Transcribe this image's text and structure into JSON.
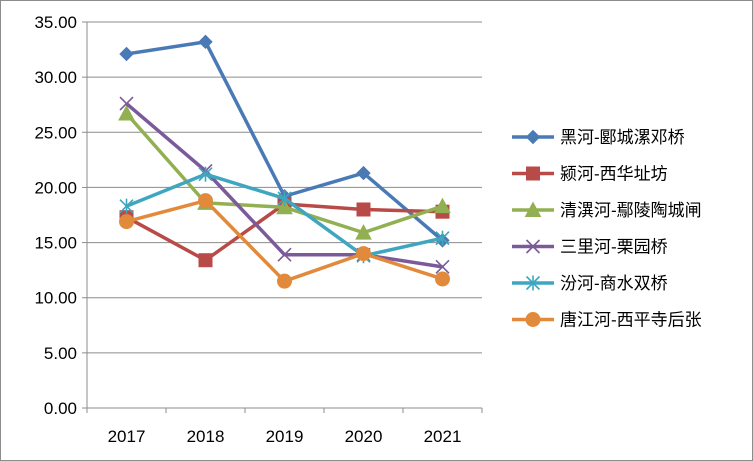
{
  "chart_data": {
    "type": "line",
    "categories": [
      "2017",
      "2018",
      "2019",
      "2020",
      "2021"
    ],
    "ylim": [
      0,
      35
    ],
    "yticks": [
      "0.00",
      "5.00",
      "10.00",
      "15.00",
      "20.00",
      "25.00",
      "30.00",
      "35.00"
    ],
    "grid": true,
    "legend_position": "right",
    "series": [
      {
        "name": "黑河-郾城漯邓桥",
        "values": [
          32.1,
          33.2,
          19.2,
          21.3,
          15.2
        ],
        "color": "#4a7ab5",
        "marker": "diamond"
      },
      {
        "name": "颍河-西华址坊",
        "values": [
          17.3,
          13.4,
          18.5,
          18.0,
          17.8
        ],
        "color": "#b84a48",
        "marker": "square"
      },
      {
        "name": "清潩河-鄢陵陶城闸",
        "values": [
          26.7,
          18.6,
          18.2,
          15.9,
          18.3
        ],
        "color": "#92b052",
        "marker": "triangle"
      },
      {
        "name": "三里河-栗园桥",
        "values": [
          27.6,
          21.5,
          13.9,
          13.9,
          12.8
        ],
        "color": "#7b5a9a",
        "marker": "x"
      },
      {
        "name": "汾河-商水双桥",
        "values": [
          18.3,
          21.2,
          19.0,
          13.8,
          15.4
        ],
        "color": "#3ea6bf",
        "marker": "star"
      },
      {
        "name": "唐江河-西平寺后张",
        "values": [
          16.9,
          18.8,
          11.5,
          14.0,
          11.7
        ],
        "color": "#e28a3b",
        "marker": "circle"
      }
    ]
  }
}
